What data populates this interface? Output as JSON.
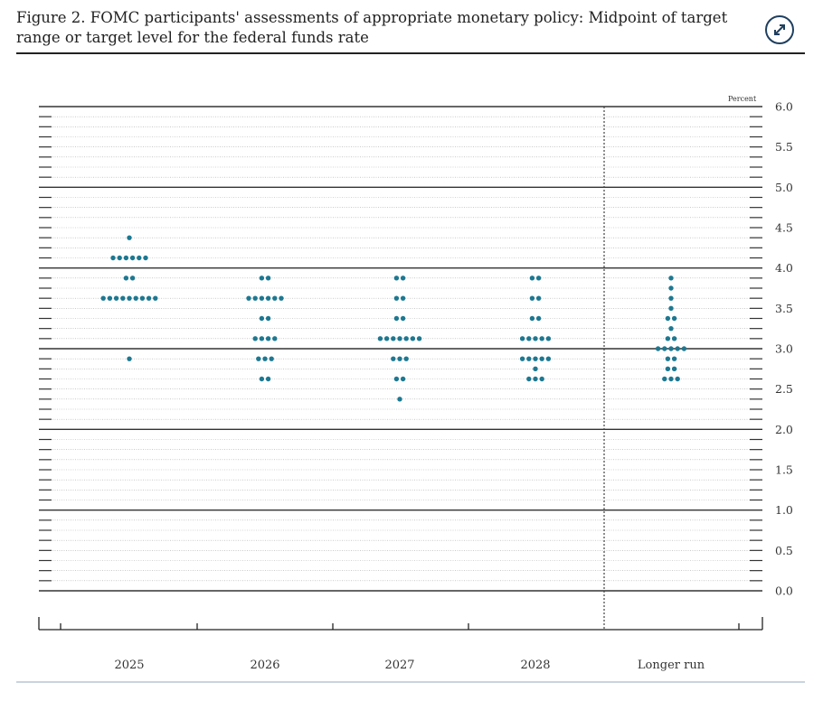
{
  "figure": {
    "title": "Figure 2. FOMC participants' assessments of appropriate monetary policy: Midpoint of target range or target level for the federal funds rate"
  },
  "toolbar": {
    "expand_icon": "expand-arrows-icon"
  },
  "chart_data": {
    "type": "scatter",
    "title": "Figure 2. FOMC participants' assessments of appropriate monetary policy: Midpoint of target range or target level for the federal funds rate",
    "ylabel": "Percent",
    "xlabel": "",
    "ylim": [
      0,
      6
    ],
    "yticks": [
      0,
      0.5,
      1,
      1.5,
      2,
      2.5,
      3,
      3.5,
      4,
      4.5,
      5,
      5.5,
      6
    ],
    "ytick_labels": [
      "0.0",
      "0.5",
      "1.0",
      "1.5",
      "2.0",
      "2.5",
      "3.0",
      "3.5",
      "4.0",
      "4.5",
      "5.0",
      "5.5",
      "6.0"
    ],
    "grid": true,
    "dot_color": "#1d7891",
    "categories": [
      "2025",
      "2026",
      "2027",
      "2028",
      "Longer run"
    ],
    "dots": [
      {
        "category": "2025",
        "levels": [
          {
            "rate": 4.375,
            "count": 1
          },
          {
            "rate": 4.125,
            "count": 6
          },
          {
            "rate": 3.875,
            "count": 2
          },
          {
            "rate": 3.625,
            "count": 9
          },
          {
            "rate": 2.875,
            "count": 1
          }
        ]
      },
      {
        "category": "2026",
        "levels": [
          {
            "rate": 3.875,
            "count": 2
          },
          {
            "rate": 3.625,
            "count": 6
          },
          {
            "rate": 3.375,
            "count": 2
          },
          {
            "rate": 3.125,
            "count": 4
          },
          {
            "rate": 2.875,
            "count": 3
          },
          {
            "rate": 2.625,
            "count": 2
          }
        ]
      },
      {
        "category": "2027",
        "levels": [
          {
            "rate": 3.875,
            "count": 2
          },
          {
            "rate": 3.625,
            "count": 2
          },
          {
            "rate": 3.375,
            "count": 2
          },
          {
            "rate": 3.125,
            "count": 7
          },
          {
            "rate": 2.875,
            "count": 3
          },
          {
            "rate": 2.625,
            "count": 2
          },
          {
            "rate": 2.375,
            "count": 1
          }
        ]
      },
      {
        "category": "2028",
        "levels": [
          {
            "rate": 3.875,
            "count": 2
          },
          {
            "rate": 3.625,
            "count": 2
          },
          {
            "rate": 3.375,
            "count": 2
          },
          {
            "rate": 3.125,
            "count": 5
          },
          {
            "rate": 2.875,
            "count": 5
          },
          {
            "rate": 2.75,
            "count": 1
          },
          {
            "rate": 2.625,
            "count": 3
          }
        ]
      },
      {
        "category": "Longer run",
        "levels": [
          {
            "rate": 3.875,
            "count": 1
          },
          {
            "rate": 3.75,
            "count": 1
          },
          {
            "rate": 3.625,
            "count": 1
          },
          {
            "rate": 3.5,
            "count": 1
          },
          {
            "rate": 3.375,
            "count": 2
          },
          {
            "rate": 3.25,
            "count": 1
          },
          {
            "rate": 3.125,
            "count": 2
          },
          {
            "rate": 3.0,
            "count": 5
          },
          {
            "rate": 2.875,
            "count": 2
          },
          {
            "rate": 2.75,
            "count": 2
          },
          {
            "rate": 2.625,
            "count": 3
          }
        ]
      }
    ]
  }
}
